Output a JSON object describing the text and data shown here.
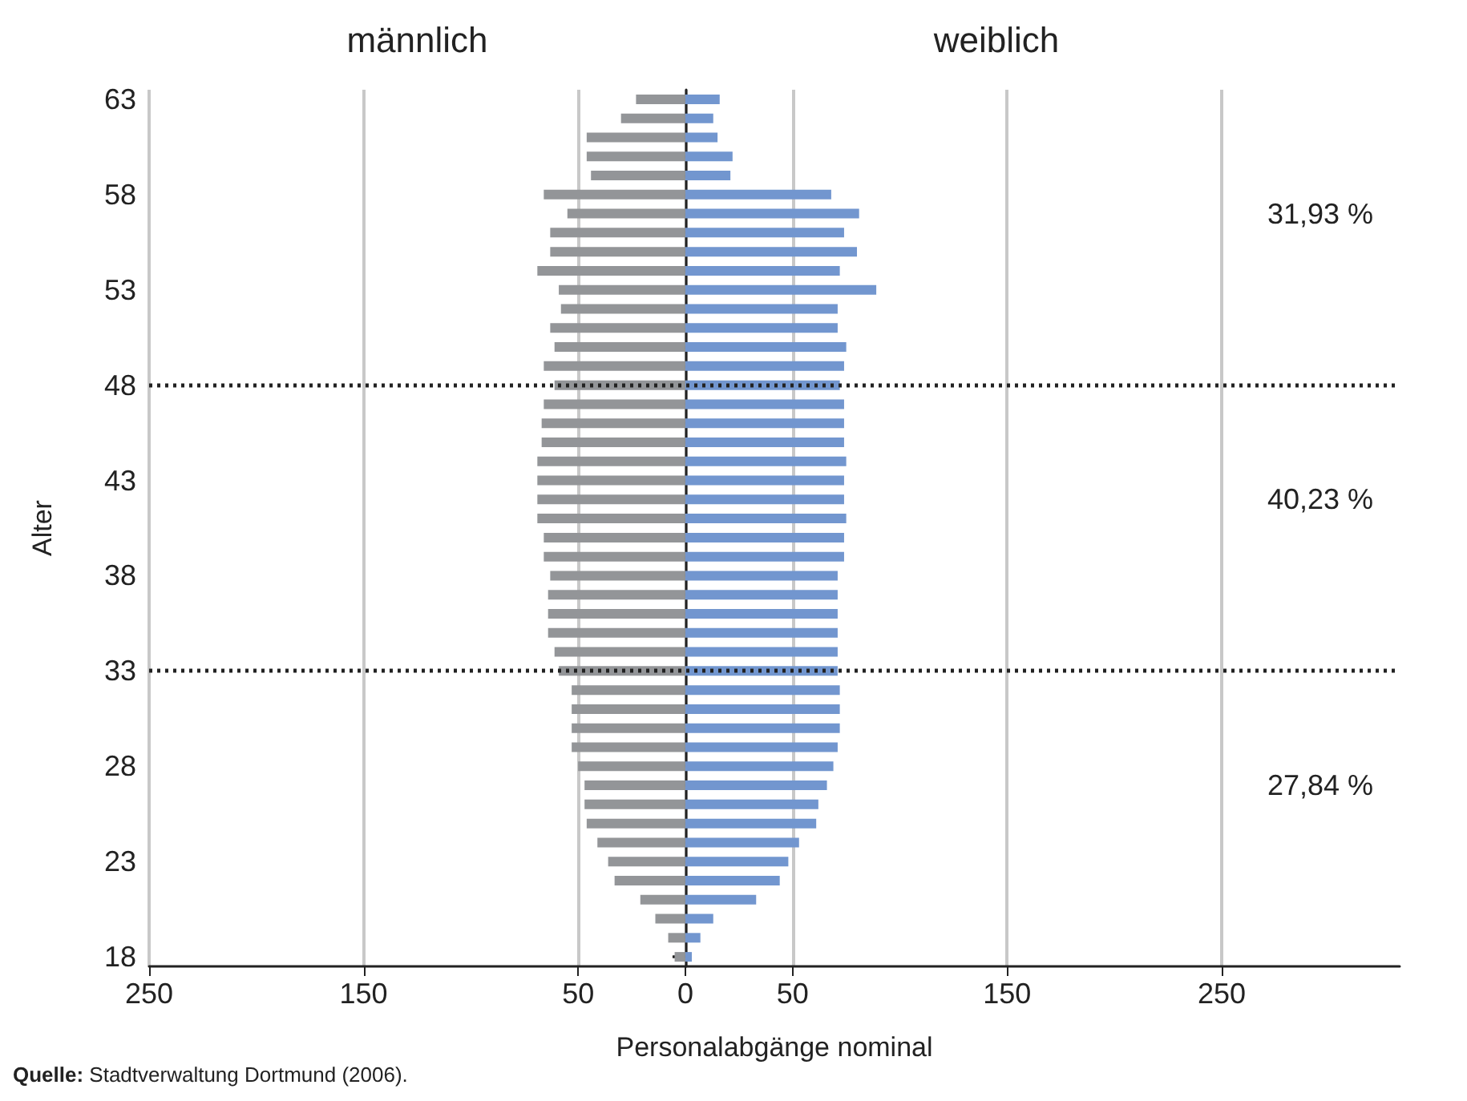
{
  "chart_data": {
    "type": "bar",
    "orientation": "horizontal",
    "xlabel": "Personalabgänge nominal",
    "ylabel": "Alter",
    "categories": [
      "63",
      null,
      null,
      null,
      null,
      "58",
      null,
      null,
      null,
      null,
      "53",
      null,
      null,
      null,
      null,
      "48",
      null,
      null,
      null,
      null,
      "43",
      null,
      null,
      null,
      null,
      "38",
      null,
      null,
      null,
      null,
      "33",
      null,
      null,
      null,
      null,
      "28",
      null,
      null,
      null,
      null,
      "23",
      null,
      null,
      null,
      null,
      "18"
    ],
    "series": [
      {
        "color": "#939598",
        "values": [
          -23,
          -30,
          -46,
          -46,
          -44,
          -66,
          -55,
          -63,
          -63,
          -69,
          -59,
          -58,
          -63,
          -61,
          -66,
          -61,
          -66,
          -67,
          -67,
          -69,
          -69,
          -69,
          -69,
          -66,
          -66,
          -63,
          -64,
          -64,
          -64,
          -61,
          -59,
          -53,
          -53,
          -53,
          -53,
          -50,
          -47,
          -47,
          -46,
          -41,
          -36,
          -33,
          -21,
          -14,
          -8,
          -5
        ]
      },
      {
        "color": "#7296cf",
        "values": [
          16,
          13,
          15,
          22,
          21,
          68,
          81,
          74,
          80,
          72,
          89,
          71,
          71,
          75,
          74,
          72,
          74,
          74,
          74,
          75,
          74,
          74,
          75,
          74,
          74,
          71,
          71,
          71,
          71,
          71,
          71,
          72,
          72,
          72,
          71,
          69,
          66,
          62,
          61,
          53,
          48,
          44,
          33,
          13,
          7,
          3
        ]
      }
    ],
    "xlim": [
      -250,
      333
    ],
    "xticks": [
      {
        "value": -250,
        "label": "250"
      },
      {
        "value": -150,
        "label": "150"
      },
      {
        "value": -50,
        "label": "50"
      },
      0,
      50,
      150,
      250
    ],
    "grid": "x",
    "stacked": true,
    "ref_lines": [
      {
        "axis": "y",
        "value": "48",
        "label": null,
        "color": "#222222",
        "line_style": "dotted"
      },
      {
        "axis": "y",
        "value": "33",
        "label": null,
        "color": "#222222",
        "line_style": "dotted"
      }
    ],
    "annotations": [
      "männlich",
      "weiblich",
      "31,93 %",
      "40,23 %",
      "27,84 %",
      "Quelle: Stadtverwaltung Dortmund (2006)."
    ]
  }
}
